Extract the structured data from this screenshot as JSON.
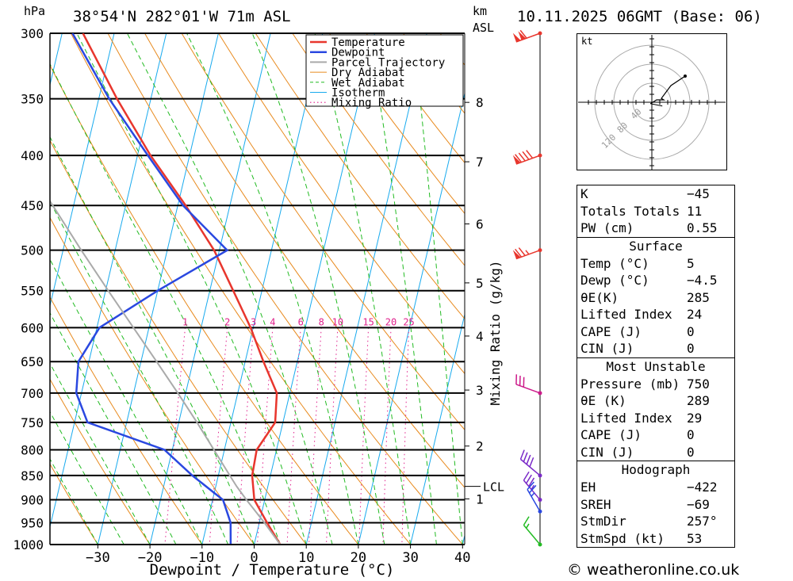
{
  "header": {
    "location": "38°54'N 282°01'W 71m ASL",
    "datetime": "10.11.2025 06GMT (Base: 06)",
    "units_left": "hPa",
    "units_right_top": "km",
    "units_right_bottom": "ASL",
    "watermark": "© weatheronline.co.uk"
  },
  "chart_data": {
    "type": "line",
    "subtype": "skew-t log-p",
    "xlabel": "Dewpoint / Temperature (°C)",
    "ylabel": "hPa",
    "mixing_ratio_label": "Mixing Ratio (g/kg)",
    "x_ticks": [
      -30,
      -20,
      -10,
      0,
      10,
      20,
      30,
      40
    ],
    "pressure_levels": [
      300,
      350,
      400,
      450,
      500,
      550,
      600,
      650,
      700,
      750,
      800,
      850,
      900,
      950,
      1000
    ],
    "height_km_labels": [
      {
        "km": "8",
        "p": 353
      },
      {
        "km": "7",
        "p": 406
      },
      {
        "km": "6",
        "p": 470
      },
      {
        "km": "5",
        "p": 540
      },
      {
        "km": "4",
        "p": 612
      },
      {
        "km": "3",
        "p": 695
      },
      {
        "km": "2",
        "p": 793
      },
      {
        "km": "1",
        "p": 898
      }
    ],
    "lcl": {
      "label": "LCL",
      "p": 872
    },
    "mixing_ratio_ticks": [
      "1",
      "2",
      "3",
      "4",
      "6",
      "8",
      "10",
      "15",
      "20",
      "25"
    ],
    "mixing_ratio_values": [
      1,
      2,
      3,
      4,
      6,
      8,
      10,
      15,
      20,
      25
    ],
    "legend": [
      "Temperature",
      "Dewpoint",
      "Parcel Trajectory",
      "Dry Adiabat",
      "Wet Adiabat",
      "Isotherm",
      "Mixing Ratio"
    ],
    "colors": {
      "temperature": "#e8362d",
      "dewpoint": "#2a48e0",
      "parcel": "#aaaaaa",
      "dry_adiabat": "#e88a1e",
      "wet_adiabat": "#22bb22",
      "isotherm": "#18aaee",
      "mixing_ratio": "#e0208c"
    },
    "series": [
      {
        "name": "Temperature",
        "points": [
          [
            1000,
            5.0
          ],
          [
            950,
            1.5
          ],
          [
            900,
            -2.0
          ],
          [
            850,
            -3.5
          ],
          [
            800,
            -3.8
          ],
          [
            750,
            -1.5
          ],
          [
            700,
            -2.5
          ],
          [
            650,
            -6.5
          ],
          [
            600,
            -10.5
          ],
          [
            550,
            -15.5
          ],
          [
            500,
            -21.0
          ],
          [
            450,
            -28.5
          ],
          [
            400,
            -37.5
          ],
          [
            350,
            -46.5
          ],
          [
            300,
            -56.0
          ]
        ]
      },
      {
        "name": "Dewpoint",
        "points": [
          [
            1000,
            -4.5
          ],
          [
            950,
            -5.5
          ],
          [
            900,
            -8.0
          ],
          [
            850,
            -15.0
          ],
          [
            800,
            -21.5
          ],
          [
            750,
            -37.5
          ],
          [
            700,
            -41.0
          ],
          [
            650,
            -42.0
          ],
          [
            600,
            -39.5
          ],
          [
            550,
            -30.0
          ],
          [
            500,
            -18.5
          ],
          [
            450,
            -29.0
          ],
          [
            400,
            -38.0
          ],
          [
            350,
            -48.0
          ],
          [
            300,
            -58.0
          ]
        ]
      },
      {
        "name": "Parcel Trajectory",
        "points": [
          [
            1000,
            5.0
          ],
          [
            950,
            1.0
          ],
          [
            900,
            -3.5
          ],
          [
            872,
            -6.0
          ],
          [
            850,
            -7.8
          ],
          [
            800,
            -12.0
          ],
          [
            750,
            -16.5
          ],
          [
            700,
            -21.5
          ],
          [
            650,
            -27.0
          ],
          [
            600,
            -33.0
          ],
          [
            550,
            -39.5
          ],
          [
            500,
            -46.5
          ],
          [
            450,
            -54.0
          ],
          [
            400,
            -62.5
          ],
          [
            350,
            -71.0
          ],
          [
            300,
            -80.0
          ]
        ]
      }
    ],
    "wind_barbs": [
      {
        "p": 300,
        "dir": 250,
        "speed_kt": 110,
        "color": "#e8362d"
      },
      {
        "p": 400,
        "dir": 250,
        "speed_kt": 90,
        "color": "#e8362d"
      },
      {
        "p": 500,
        "dir": 250,
        "speed_kt": 75,
        "color": "#e8362d"
      },
      {
        "p": 700,
        "dir": 290,
        "speed_kt": 30,
        "color": "#cc1a8a"
      },
      {
        "p": 850,
        "dir": 310,
        "speed_kt": 40,
        "color": "#7a2ac8"
      },
      {
        "p": 900,
        "dir": 320,
        "speed_kt": 35,
        "color": "#7a2ac8"
      },
      {
        "p": 925,
        "dir": 330,
        "speed_kt": 25,
        "color": "#2a48e0"
      },
      {
        "p": 1000,
        "dir": 320,
        "speed_kt": 15,
        "color": "#22bb22"
      }
    ]
  },
  "hodograph": {
    "unit_label": "kt",
    "ring_labels": [
      "40",
      "80",
      "120"
    ],
    "points": [
      [
        -3,
        -3
      ],
      [
        10,
        5
      ],
      [
        20,
        5
      ],
      [
        25,
        5
      ],
      [
        20,
        8
      ],
      [
        40,
        35
      ],
      [
        70,
        55
      ]
    ],
    "storm_motion": [
      22,
      -8
    ]
  },
  "indices": {
    "top": [
      {
        "label": "K",
        "value": "-45"
      },
      {
        "label": "Totals Totals",
        "value": "11"
      },
      {
        "label": "PW (cm)",
        "value": "0.55"
      }
    ],
    "surface_title": "Surface",
    "surface": [
      {
        "label": "Temp (°C)",
        "value": "5"
      },
      {
        "label": "Dewp (°C)",
        "value": "-4.5"
      },
      {
        "label": "θE(K)",
        "value": "285"
      },
      {
        "label": "Lifted Index",
        "value": "24"
      },
      {
        "label": "CAPE (J)",
        "value": "0"
      },
      {
        "label": "CIN (J)",
        "value": "0"
      }
    ],
    "mu_title": "Most Unstable",
    "mu": [
      {
        "label": "Pressure (mb)",
        "value": "750"
      },
      {
        "label": "θE (K)",
        "value": "289"
      },
      {
        "label": "Lifted Index",
        "value": "29"
      },
      {
        "label": "CAPE (J)",
        "value": "0"
      },
      {
        "label": "CIN (J)",
        "value": "0"
      }
    ],
    "hodo_title": "Hodograph",
    "hodo": [
      {
        "label": "EH",
        "value": "-422"
      },
      {
        "label": "SREH",
        "value": "-69"
      },
      {
        "label": "StmDir",
        "value": "257°"
      },
      {
        "label": "StmSpd (kt)",
        "value": "53"
      }
    ]
  }
}
